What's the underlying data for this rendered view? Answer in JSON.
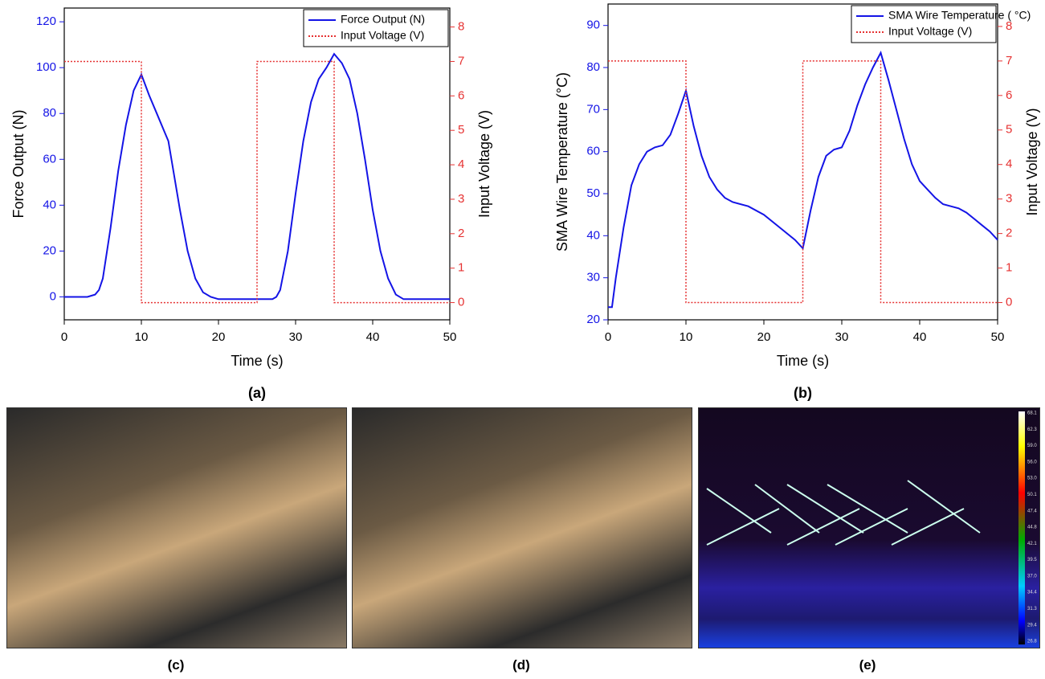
{
  "chart_data": [
    {
      "type": "line",
      "panel_label": "(a)",
      "xlabel": "Time (s)",
      "ylabel": "Force Output (N)",
      "y2label": "Input Voltage (V)",
      "xlim": [
        0,
        50
      ],
      "xticks": [
        0,
        10,
        20,
        30,
        40,
        50
      ],
      "ylim": [
        -10,
        126
      ],
      "yticks": [
        0,
        20,
        40,
        60,
        80,
        100,
        120
      ],
      "y2lim": [
        -0.5,
        8.55
      ],
      "y2ticks": [
        0,
        1,
        2,
        3,
        4,
        5,
        6,
        7,
        8
      ],
      "legend": "upper right",
      "series": [
        {
          "name": "Force Output (N)",
          "color": "#1414e6",
          "linestyle": "solid",
          "x": [
            0,
            1,
            2,
            3,
            4,
            4.5,
            5,
            6,
            7,
            8,
            9,
            10,
            11,
            12,
            13,
            13.5,
            14,
            15,
            16,
            17,
            18,
            19,
            20,
            22,
            24,
            26,
            27,
            27.5,
            28,
            29,
            30,
            31,
            32,
            33,
            34,
            35,
            36,
            37,
            38,
            39,
            40,
            41,
            42,
            43,
            44,
            46,
            48,
            50
          ],
          "values": [
            0,
            0,
            0,
            0,
            1,
            3,
            8,
            30,
            55,
            75,
            90,
            97,
            88,
            80,
            72,
            68,
            58,
            38,
            20,
            8,
            2,
            0,
            -1,
            -1,
            -1,
            -1,
            -1,
            0,
            3,
            20,
            45,
            68,
            85,
            95,
            100,
            106,
            102,
            95,
            80,
            60,
            38,
            20,
            8,
            1,
            -1,
            -1,
            -1,
            -1
          ]
        },
        {
          "name": "Input Voltage (V)",
          "color": "#e63232",
          "linestyle": "dotted",
          "axis": "y2",
          "x": [
            0,
            10,
            10,
            25,
            25,
            35,
            35,
            50
          ],
          "values": [
            7,
            7,
            0,
            0,
            7,
            7,
            0,
            0
          ]
        }
      ]
    },
    {
      "type": "line",
      "panel_label": "(b)",
      "xlabel": "Time (s)",
      "ylabel": "SMA Wire Temperature (°C)",
      "y2label": "Input Voltage (V)",
      "xlim": [
        0,
        50
      ],
      "xticks": [
        0,
        10,
        20,
        30,
        40,
        50
      ],
      "ylim": [
        20,
        95.1
      ],
      "yticks": [
        20,
        30,
        40,
        50,
        60,
        70,
        80,
        90
      ],
      "y2lim": [
        -0.5,
        8.65
      ],
      "y2ticks": [
        0,
        1,
        2,
        3,
        4,
        5,
        6,
        7,
        8
      ],
      "legend": "upper right",
      "series": [
        {
          "name": "SMA Wire Temperature ( °C)",
          "color": "#1414e6",
          "linestyle": "solid",
          "x": [
            0,
            0.5,
            1,
            2,
            3,
            4,
            5,
            6,
            7,
            8,
            9,
            10,
            11,
            12,
            13,
            14,
            15,
            16,
            18,
            20,
            22,
            24,
            25,
            26,
            27,
            28,
            29,
            30,
            31,
            32,
            33,
            34,
            35,
            36,
            37,
            38,
            39,
            40,
            41,
            42,
            43,
            44,
            45,
            46,
            47,
            48,
            49,
            50
          ],
          "values": [
            23,
            23,
            30,
            42,
            52,
            57,
            60,
            61,
            61.5,
            64,
            69,
            74.5,
            66,
            59,
            54,
            51,
            49,
            48,
            47,
            45,
            42,
            39,
            37,
            46,
            54,
            59,
            60.5,
            61,
            65,
            71,
            76,
            80,
            83.5,
            77,
            70,
            63,
            57,
            53,
            51,
            49,
            47.5,
            47,
            46.5,
            45.5,
            44,
            42.5,
            41,
            39
          ]
        },
        {
          "name": "Input Voltage (V)",
          "color": "#e63232",
          "linestyle": "dotted",
          "axis": "y2",
          "x": [
            0,
            10,
            10,
            25,
            25,
            35,
            35,
            50
          ],
          "values": [
            7,
            7,
            0,
            0,
            7,
            7,
            0,
            0
          ]
        }
      ]
    }
  ],
  "photos": [
    {
      "label": "(c)"
    },
    {
      "label": "(d)"
    },
    {
      "label": "(e)",
      "scale": [
        "68.1",
        "62.3",
        "59.0",
        "56.0",
        "53.0",
        "50.1",
        "47.4",
        "44.8",
        "42.1",
        "39.5",
        "37.0",
        "34.4",
        "31.3",
        "29.4",
        "26.8"
      ]
    }
  ]
}
